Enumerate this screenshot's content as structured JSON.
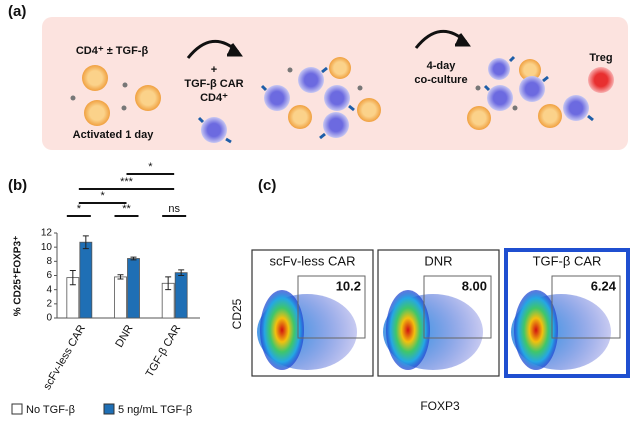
{
  "panel_labels": [
    "(a)",
    "(b)",
    "(c)"
  ],
  "diagram": {
    "start_label": "CD4⁺ ± TGF-β",
    "start_caption": "Activated 1 day",
    "add_label": [
      "+",
      "TGF-β CAR",
      "CD4⁺"
    ],
    "step_label": [
      "4-day",
      "co-culture"
    ],
    "treg_label": "Treg"
  },
  "chart_data": {
    "type": "bar",
    "y_label": "% CD25⁺FOXP3⁺",
    "categories": [
      "scFv-less CAR",
      "DNR",
      "TGF-β CAR"
    ],
    "series": [
      {
        "name": "No TGF-β",
        "color": "#ffffff",
        "values": [
          5.7,
          5.8,
          4.9
        ],
        "errors": [
          1.0,
          0.3,
          0.9
        ]
      },
      {
        "name": "5 ng/mL TGF-β",
        "color": "#1f6fb5",
        "values": [
          10.7,
          8.4,
          6.4
        ],
        "errors": [
          0.9,
          0.2,
          0.4
        ]
      }
    ],
    "ylim": [
      0,
      12
    ],
    "yticks": [
      0,
      2,
      4,
      6,
      8,
      10,
      12
    ],
    "significance": [
      {
        "label": "*"
      },
      {
        "label": "**"
      },
      {
        "label": "ns"
      },
      {
        "label": "*"
      },
      {
        "label": "***"
      },
      {
        "label": "*"
      }
    ]
  },
  "flow": {
    "x_label": "FOXP3",
    "y_label": "CD25",
    "plots": [
      {
        "title": "scFv-less CAR",
        "gate_label": "10.2"
      },
      {
        "title": "DNR",
        "gate_label": "8.00"
      },
      {
        "title": "TGF-β CAR",
        "gate_label": "6.24"
      }
    ]
  }
}
